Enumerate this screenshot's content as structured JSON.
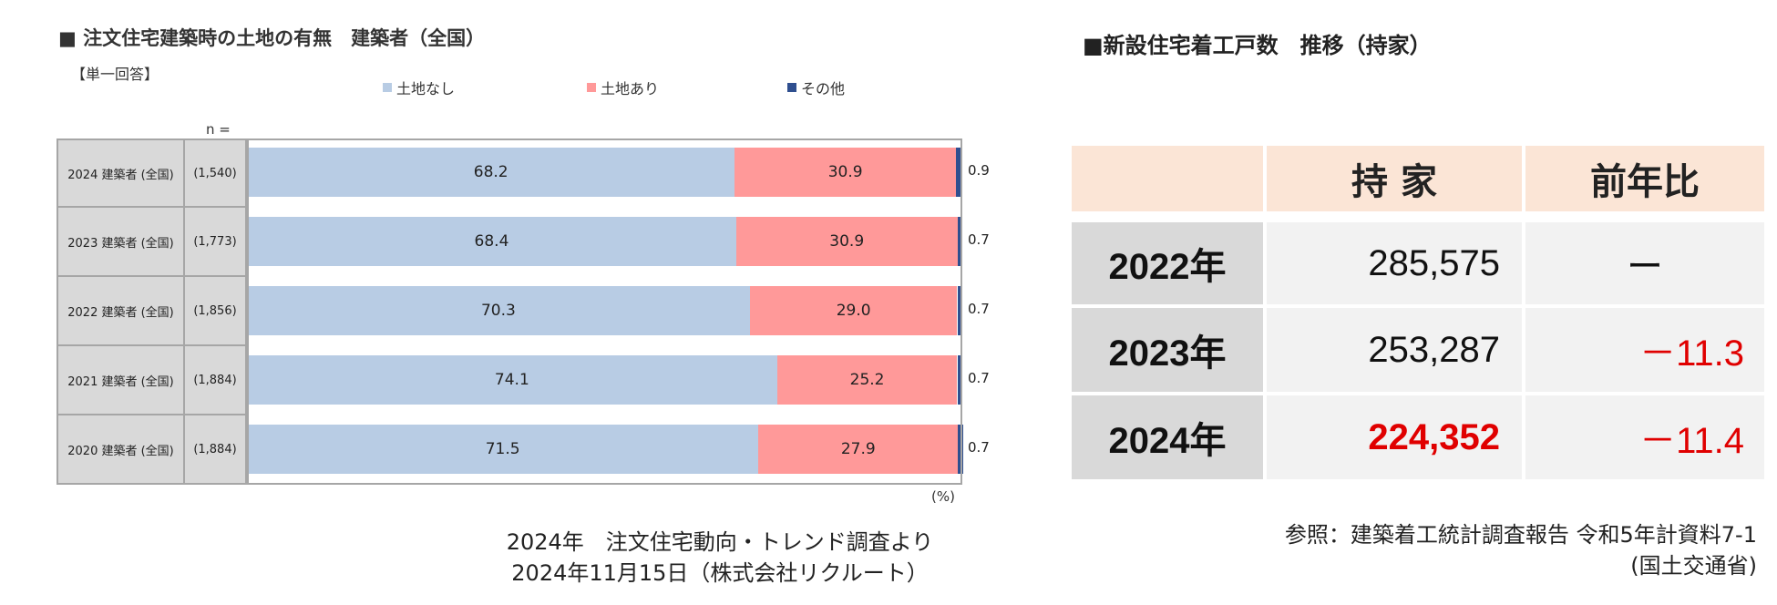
{
  "left": {
    "title": "■  注文住宅建築時の土地の有無　建築者（全国）",
    "subtitle": "【単一回答】",
    "n_label": "n =",
    "unit": "(%)",
    "source_line1": "2024年　注文住宅動向・トレンド調査より",
    "source_line2": "2024年11月15日（株式会社リクルート）"
  },
  "chart_data": {
    "type": "bar",
    "orientation": "horizontal-stacked-100",
    "title": "注文住宅建築時の土地の有無　建築者（全国）",
    "subtitle": "【単一回答】",
    "categories": [
      "2024 建築者 (全国)",
      "2023 建築者 (全国)",
      "2022 建築者 (全国)",
      "2021 建築者 (全国)",
      "2020 建築者 (全国)"
    ],
    "n": [
      "(1,540)",
      "(1,773)",
      "(1,856)",
      "(1,884)",
      "(1,884)"
    ],
    "series": [
      {
        "name": "土地なし",
        "color": "#b8cce4",
        "values": [
          68.2,
          68.4,
          70.3,
          74.1,
          71.5
        ]
      },
      {
        "name": "土地あり",
        "color": "#ff9999",
        "values": [
          30.9,
          30.9,
          29.0,
          25.2,
          27.9
        ]
      },
      {
        "name": "その他",
        "color": "#2f4f8f",
        "values": [
          0.9,
          0.7,
          0.7,
          0.7,
          0.7
        ]
      }
    ],
    "xlim": [
      0,
      100
    ],
    "unit": "(%)",
    "legend_position": "top"
  },
  "right": {
    "title": "■新設住宅着工戸数　推移（持家）",
    "header": {
      "col1": "持 家",
      "col2": "前年比"
    },
    "rows": [
      {
        "year": "2022年",
        "value": "285,575",
        "yoy": "ー"
      },
      {
        "year": "2023年",
        "value": "253,287",
        "yoy": "－11.3"
      },
      {
        "year": "2024年",
        "value": "224,352",
        "yoy": "－11.4"
      }
    ],
    "highlight_color": "#e00000",
    "source_line1": "参照：建築着工統計調査報告 令和5年計資料7-1",
    "source_line2": "(国土交通省)"
  }
}
